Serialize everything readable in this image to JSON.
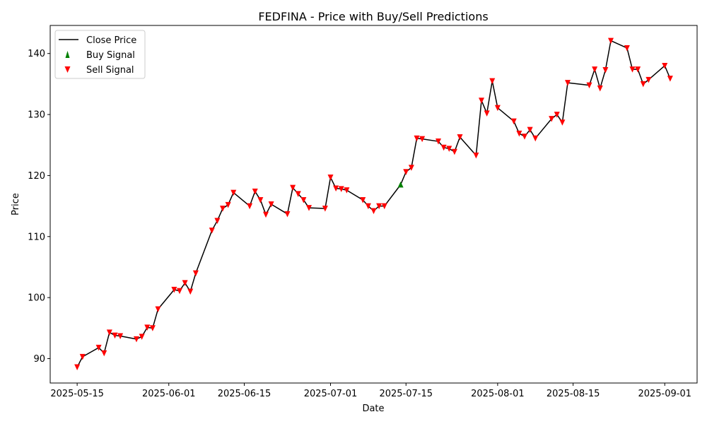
{
  "chart_data": {
    "type": "line",
    "title": "FEDFINA - Price with Buy/Sell Predictions",
    "xlabel": "Date",
    "ylabel": "Price",
    "xlim": [
      "2025-05-10",
      "2025-09-07"
    ],
    "ylim": [
      86,
      144.6
    ],
    "x_ticks": [
      "2025-05-15",
      "2025-06-01",
      "2025-06-15",
      "2025-07-01",
      "2025-07-15",
      "2025-08-01",
      "2025-08-15",
      "2025-09-01"
    ],
    "y_ticks": [
      90,
      100,
      110,
      120,
      130,
      140
    ],
    "grid": false,
    "legend_position": "top-left",
    "series": [
      {
        "name": "Close Price",
        "color": "#000000",
        "points": [
          [
            "2025-05-15",
            88.6
          ],
          [
            "2025-05-16",
            90.3
          ],
          [
            "2025-05-19",
            91.8
          ],
          [
            "2025-05-20",
            90.9
          ],
          [
            "2025-05-21",
            94.3
          ],
          [
            "2025-05-22",
            93.8
          ],
          [
            "2025-05-23",
            93.7
          ],
          [
            "2025-05-26",
            93.2
          ],
          [
            "2025-05-27",
            93.6
          ],
          [
            "2025-05-28",
            95.1
          ],
          [
            "2025-05-29",
            95.0
          ],
          [
            "2025-05-30",
            98.1
          ],
          [
            "2025-06-02",
            101.3
          ],
          [
            "2025-06-03",
            101.1
          ],
          [
            "2025-06-04",
            102.4
          ],
          [
            "2025-06-05",
            101.0
          ],
          [
            "2025-06-06",
            104.0
          ],
          [
            "2025-06-09",
            111.0
          ],
          [
            "2025-06-10",
            112.6
          ],
          [
            "2025-06-11",
            114.6
          ],
          [
            "2025-06-12",
            115.2
          ],
          [
            "2025-06-13",
            117.2
          ],
          [
            "2025-06-16",
            115.0
          ],
          [
            "2025-06-17",
            117.4
          ],
          [
            "2025-06-18",
            116.0
          ],
          [
            "2025-06-19",
            113.6
          ],
          [
            "2025-06-20",
            115.3
          ],
          [
            "2025-06-23",
            113.7
          ],
          [
            "2025-06-24",
            118.0
          ],
          [
            "2025-06-25",
            117.0
          ],
          [
            "2025-06-26",
            116.0
          ],
          [
            "2025-06-27",
            114.7
          ],
          [
            "2025-06-30",
            114.6
          ],
          [
            "2025-07-01",
            119.7
          ],
          [
            "2025-07-02",
            117.9
          ],
          [
            "2025-07-03",
            117.8
          ],
          [
            "2025-07-04",
            117.6
          ],
          [
            "2025-07-07",
            116.0
          ],
          [
            "2025-07-08",
            115.0
          ],
          [
            "2025-07-09",
            114.2
          ],
          [
            "2025-07-10",
            115.0
          ],
          [
            "2025-07-11",
            115.0
          ],
          [
            "2025-07-14",
            118.5
          ],
          [
            "2025-07-15",
            120.6
          ],
          [
            "2025-07-16",
            121.3
          ],
          [
            "2025-07-17",
            126.1
          ],
          [
            "2025-07-18",
            126.0
          ],
          [
            "2025-07-21",
            125.6
          ],
          [
            "2025-07-22",
            124.6
          ],
          [
            "2025-07-23",
            124.4
          ],
          [
            "2025-07-24",
            123.9
          ],
          [
            "2025-07-25",
            126.3
          ],
          [
            "2025-07-28",
            123.3
          ],
          [
            "2025-07-29",
            132.3
          ],
          [
            "2025-07-30",
            130.2
          ],
          [
            "2025-07-31",
            135.5
          ],
          [
            "2025-08-01",
            131.1
          ],
          [
            "2025-08-04",
            128.9
          ],
          [
            "2025-08-05",
            126.9
          ],
          [
            "2025-08-06",
            126.4
          ],
          [
            "2025-08-07",
            127.5
          ],
          [
            "2025-08-08",
            126.1
          ],
          [
            "2025-08-11",
            129.3
          ],
          [
            "2025-08-12",
            130.0
          ],
          [
            "2025-08-13",
            128.7
          ],
          [
            "2025-08-14",
            135.2
          ],
          [
            "2025-08-18",
            134.8
          ],
          [
            "2025-08-19",
            137.4
          ],
          [
            "2025-08-20",
            134.3
          ],
          [
            "2025-08-21",
            137.3
          ],
          [
            "2025-08-22",
            142.1
          ],
          [
            "2025-08-25",
            140.9
          ],
          [
            "2025-08-26",
            137.4
          ],
          [
            "2025-08-27",
            137.4
          ],
          [
            "2025-08-28",
            135.0
          ],
          [
            "2025-08-29",
            135.7
          ],
          [
            "2025-09-01",
            138.0
          ],
          [
            "2025-09-02",
            135.9
          ]
        ]
      },
      {
        "name": "Buy Signal",
        "color": "#008000",
        "marker": "triangle-up",
        "points": [
          [
            "2025-07-14",
            118.5
          ]
        ]
      },
      {
        "name": "Sell Signal",
        "color": "#ff0000",
        "marker": "triangle-down",
        "points": [
          [
            "2025-05-15",
            88.6
          ],
          [
            "2025-05-16",
            90.3
          ],
          [
            "2025-05-19",
            91.8
          ],
          [
            "2025-05-20",
            90.9
          ],
          [
            "2025-05-21",
            94.3
          ],
          [
            "2025-05-22",
            93.8
          ],
          [
            "2025-05-23",
            93.7
          ],
          [
            "2025-05-26",
            93.2
          ],
          [
            "2025-05-27",
            93.6
          ],
          [
            "2025-05-28",
            95.1
          ],
          [
            "2025-05-29",
            95.0
          ],
          [
            "2025-05-30",
            98.1
          ],
          [
            "2025-06-02",
            101.3
          ],
          [
            "2025-06-03",
            101.1
          ],
          [
            "2025-06-04",
            102.4
          ],
          [
            "2025-06-05",
            101.0
          ],
          [
            "2025-06-06",
            104.0
          ],
          [
            "2025-06-09",
            111.0
          ],
          [
            "2025-06-10",
            112.6
          ],
          [
            "2025-06-11",
            114.6
          ],
          [
            "2025-06-12",
            115.2
          ],
          [
            "2025-06-13",
            117.2
          ],
          [
            "2025-06-16",
            115.0
          ],
          [
            "2025-06-17",
            117.4
          ],
          [
            "2025-06-18",
            116.0
          ],
          [
            "2025-06-19",
            113.6
          ],
          [
            "2025-06-20",
            115.3
          ],
          [
            "2025-06-23",
            113.7
          ],
          [
            "2025-06-24",
            118.0
          ],
          [
            "2025-06-25",
            117.0
          ],
          [
            "2025-06-26",
            116.0
          ],
          [
            "2025-06-27",
            114.7
          ],
          [
            "2025-06-30",
            114.6
          ],
          [
            "2025-07-01",
            119.7
          ],
          [
            "2025-07-02",
            117.9
          ],
          [
            "2025-07-03",
            117.8
          ],
          [
            "2025-07-04",
            117.6
          ],
          [
            "2025-07-07",
            116.0
          ],
          [
            "2025-07-08",
            115.0
          ],
          [
            "2025-07-09",
            114.2
          ],
          [
            "2025-07-10",
            115.0
          ],
          [
            "2025-07-11",
            115.0
          ],
          [
            "2025-07-15",
            120.6
          ],
          [
            "2025-07-16",
            121.3
          ],
          [
            "2025-07-17",
            126.1
          ],
          [
            "2025-07-18",
            126.0
          ],
          [
            "2025-07-21",
            125.6
          ],
          [
            "2025-07-22",
            124.6
          ],
          [
            "2025-07-23",
            124.4
          ],
          [
            "2025-07-24",
            123.9
          ],
          [
            "2025-07-25",
            126.3
          ],
          [
            "2025-07-28",
            123.3
          ],
          [
            "2025-07-29",
            132.3
          ],
          [
            "2025-07-30",
            130.2
          ],
          [
            "2025-07-31",
            135.5
          ],
          [
            "2025-08-01",
            131.1
          ],
          [
            "2025-08-04",
            128.9
          ],
          [
            "2025-08-05",
            126.9
          ],
          [
            "2025-08-06",
            126.4
          ],
          [
            "2025-08-07",
            127.5
          ],
          [
            "2025-08-08",
            126.1
          ],
          [
            "2025-08-11",
            129.3
          ],
          [
            "2025-08-12",
            130.0
          ],
          [
            "2025-08-13",
            128.7
          ],
          [
            "2025-08-14",
            135.2
          ],
          [
            "2025-08-18",
            134.8
          ],
          [
            "2025-08-19",
            137.4
          ],
          [
            "2025-08-20",
            134.3
          ],
          [
            "2025-08-21",
            137.3
          ],
          [
            "2025-08-22",
            142.1
          ],
          [
            "2025-08-25",
            140.9
          ],
          [
            "2025-08-26",
            137.4
          ],
          [
            "2025-08-27",
            137.4
          ],
          [
            "2025-08-28",
            135.0
          ],
          [
            "2025-08-29",
            135.7
          ],
          [
            "2025-09-01",
            138.0
          ],
          [
            "2025-09-02",
            135.9
          ]
        ]
      }
    ]
  }
}
